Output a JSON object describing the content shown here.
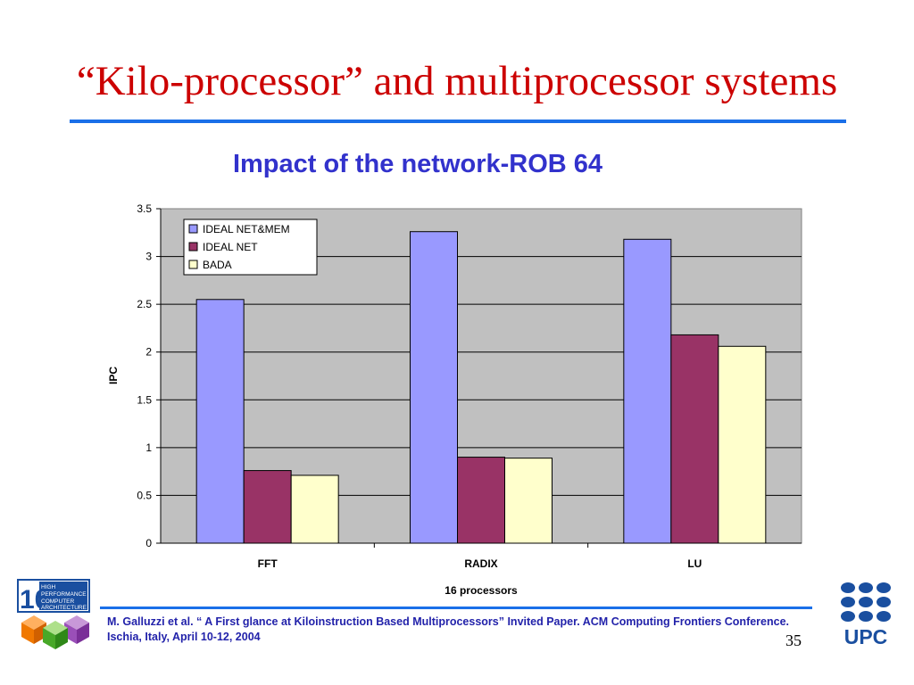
{
  "slide": {
    "title": "“Kilo-processor” and multiprocessor systems",
    "citation": "M. Galluzzi et al. “ A First glance at Kiloinstruction Based Multiprocessors” Invited Paper. ACM Computing Frontiers Conference. Ischia, Italy, April 10-12, 2004",
    "page_number": "35",
    "left_logo": {
      "number": "10",
      "lines": [
        "HIGH",
        "PERFORMANCE",
        "COMPUTER",
        "ARCHITECTURE"
      ]
    },
    "right_logo": {
      "text": "UPC"
    },
    "colors": {
      "title": "#cc0000",
      "rule": "#1a6fe8",
      "chart_title": "#3232cc",
      "citation": "#2222aa",
      "upc": "#1a4fa0"
    }
  },
  "chart_data": {
    "type": "bar",
    "title": "Impact of the network-ROB 64",
    "xlabel": "16 processors",
    "ylabel": "IPC",
    "categories": [
      "FFT",
      "RADIX",
      "LU"
    ],
    "ylim": [
      0,
      3.5
    ],
    "yticks": [
      "0",
      "0.5",
      "1",
      "1.5",
      "2",
      "2.5",
      "3",
      "3.5"
    ],
    "grid": true,
    "legend_position": "top-left",
    "plot_background": "#c0c0c0",
    "series": [
      {
        "name": "IDEAL NET&MEM",
        "color": "#9999ff",
        "values": [
          2.55,
          3.26,
          3.18
        ]
      },
      {
        "name": "IDEAL NET",
        "color": "#993366",
        "values": [
          0.76,
          0.9,
          2.18
        ]
      },
      {
        "name": "BADA",
        "color": "#ffffcc",
        "values": [
          0.71,
          0.89,
          2.06
        ]
      }
    ]
  }
}
